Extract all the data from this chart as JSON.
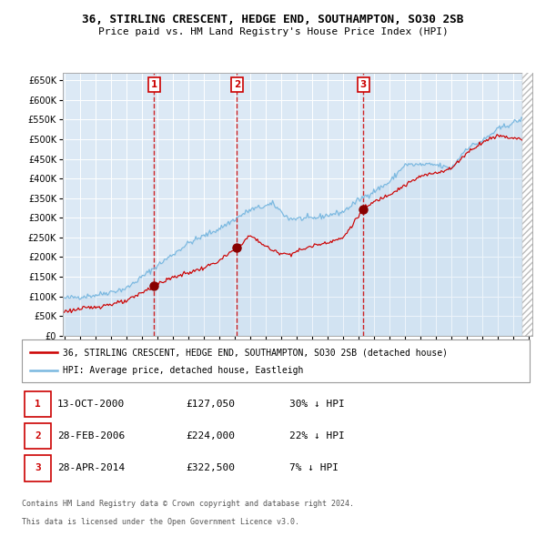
{
  "title": "36, STIRLING CRESCENT, HEDGE END, SOUTHAMPTON, SO30 2SB",
  "subtitle": "Price paid vs. HM Land Registry's House Price Index (HPI)",
  "ylim": [
    0,
    670000
  ],
  "yticks": [
    0,
    50000,
    100000,
    150000,
    200000,
    250000,
    300000,
    350000,
    400000,
    450000,
    500000,
    550000,
    600000,
    650000
  ],
  "background_color": "#dce9f5",
  "grid_color": "#ffffff",
  "hpi_line_color": "#7ab8e0",
  "price_line_color": "#cc0000",
  "sale_marker_color": "#880000",
  "vline_color": "#cc0000",
  "legend_label_price": "36, STIRLING CRESCENT, HEDGE END, SOUTHAMPTON, SO30 2SB (detached house)",
  "legend_label_hpi": "HPI: Average price, detached house, Eastleigh",
  "sales": [
    {
      "num": 1,
      "date": "13-OCT-2000",
      "price": 127050,
      "price_str": "£127,050",
      "pct": "30% ↓ HPI",
      "x_year": 2000.79
    },
    {
      "num": 2,
      "date": "28-FEB-2006",
      "price": 224000,
      "price_str": "£224,000",
      "pct": "22% ↓ HPI",
      "x_year": 2006.16
    },
    {
      "num": 3,
      "date": "28-APR-2014",
      "price": 322500,
      "price_str": "£322,500",
      "pct": "7% ↓ HPI",
      "x_year": 2014.33
    }
  ],
  "footer_line1": "Contains HM Land Registry data © Crown copyright and database right 2024.",
  "footer_line2": "This data is licensed under the Open Government Licence v3.0.",
  "xmin": 1995,
  "xmax": 2025
}
